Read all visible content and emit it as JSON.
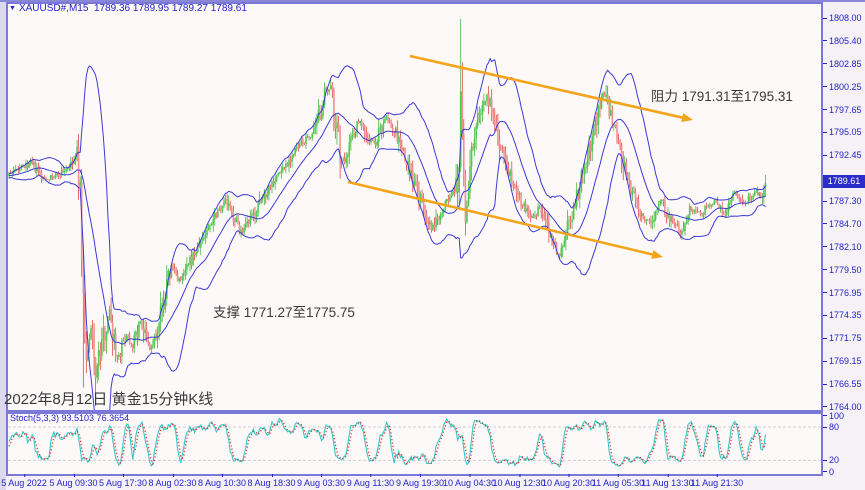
{
  "window": {
    "title": "XAUUSD#,M15  1789.36 1789.95 1789.27 1789.61",
    "dropdown_icon": "▼"
  },
  "colors": {
    "candle_up": "#2eae2e",
    "candle_up_fill": "#4ecb4e",
    "candle_down": "#e03030",
    "candle_down_fill": "#f29090",
    "bollinger": "#3b3bd6",
    "stoch_main": "#35c8c8",
    "stoch_signal": "#e03232",
    "arrow": "#f2a51b",
    "axis_text": "#2424c8",
    "badge_bg": "#2c2cc8",
    "panel_border": "#7a7ad6",
    "level_dash": "#cfcfcf"
  },
  "price_axis": {
    "ticks": [
      "1808.00",
      "1805.40",
      "1802.85",
      "1800.25",
      "1797.65",
      "1795.05",
      "1792.45",
      "1787.30",
      "1784.70",
      "1782.10",
      "1779.50",
      "1776.95",
      "1774.35",
      "1771.75",
      "1769.15",
      "1766.55",
      "1764.00"
    ],
    "current_price": "1789.61"
  },
  "time_axis": {
    "labels": [
      "5 Aug 2022",
      "5 Aug 09:30",
      "5 Aug 17:30",
      "8 Aug 02:30",
      "8 Aug 10:30",
      "8 Aug 18:30",
      "9 Aug 03:30",
      "9 Aug 11:30",
      "9 Aug 19:30",
      "10 Aug 04:30",
      "10 Aug 12:30",
      "10 Aug 20:30",
      "11 Aug 05:30",
      "11 Aug 13:30",
      "11 Aug 21:30"
    ]
  },
  "indicator": {
    "label": "Stoch(5,3,3) 93.5103 76.3654",
    "scale": [
      "100",
      "80",
      "20",
      "0"
    ],
    "levels": [
      80,
      20
    ]
  },
  "annotations": {
    "resistance": "阻力 1791.31至1795.31",
    "support": "支撑 1771.27至1775.75",
    "date_note": "2022年8月12日 黄金15分钟K线"
  },
  "chart_data": {
    "type": "candlestick",
    "symbol": "XAUUSD#",
    "timeframe": "M15",
    "title": "XAUUSD#,M15",
    "last_ohlc": {
      "open": 1789.36,
      "high": 1789.95,
      "low": 1789.27,
      "close": 1789.61
    },
    "ylim": [
      1764.0,
      1808.0
    ],
    "resistance_zone": [
      1791.31,
      1795.31
    ],
    "support_zone": [
      1771.27,
      1775.75
    ],
    "overlays": [
      {
        "name": "Bollinger Bands",
        "period": 20,
        "deviation": 2
      }
    ],
    "indicator_pane": {
      "name": "Stochastic",
      "params": [
        5,
        3,
        3
      ],
      "values": [
        93.5103,
        76.3654
      ],
      "levels": [
        80,
        20
      ]
    },
    "price_waypoints": [
      [
        0,
        1790.2
      ],
      [
        14,
        1791.6
      ],
      [
        22,
        1789.8
      ],
      [
        30,
        1790.1
      ],
      [
        40,
        1791.3
      ],
      [
        44,
        1792.4
      ],
      [
        46,
        1788.0
      ],
      [
        48,
        1776.0
      ],
      [
        50,
        1769.2
      ],
      [
        53,
        1772.6
      ],
      [
        56,
        1767.8
      ],
      [
        60,
        1771.2
      ],
      [
        65,
        1774.8
      ],
      [
        70,
        1769.6
      ],
      [
        76,
        1772.2
      ],
      [
        80,
        1771.0
      ],
      [
        85,
        1773.8
      ],
      [
        91,
        1770.4
      ],
      [
        96,
        1772.2
      ],
      [
        100,
        1776.2
      ],
      [
        105,
        1779.8
      ],
      [
        111,
        1778.2
      ],
      [
        120,
        1781.4
      ],
      [
        127,
        1783.6
      ],
      [
        133,
        1785.8
      ],
      [
        140,
        1787.4
      ],
      [
        143,
        1786.2
      ],
      [
        151,
        1783.6
      ],
      [
        159,
        1786.0
      ],
      [
        169,
        1789.2
      ],
      [
        178,
        1791.2
      ],
      [
        188,
        1793.6
      ],
      [
        198,
        1795.2
      ],
      [
        204,
        1799.4
      ],
      [
        209,
        1799.9
      ],
      [
        212,
        1795.0
      ],
      [
        215,
        1791.4
      ],
      [
        222,
        1794.8
      ],
      [
        227,
        1796.6
      ],
      [
        232,
        1794.2
      ],
      [
        237,
        1793.8
      ],
      [
        243,
        1796.8
      ],
      [
        250,
        1795.0
      ],
      [
        259,
        1790.6
      ],
      [
        266,
        1787.4
      ],
      [
        273,
        1783.9
      ],
      [
        279,
        1786.2
      ],
      [
        285,
        1787.8
      ],
      [
        290,
        1788.6
      ],
      [
        291,
        1792.0
      ],
      [
        292,
        1800.0
      ],
      [
        293,
        1796.0
      ],
      [
        295,
        1784.2
      ],
      [
        299,
        1793.2
      ],
      [
        304,
        1797.4
      ],
      [
        309,
        1799.2
      ],
      [
        317,
        1794.0
      ],
      [
        324,
        1790.4
      ],
      [
        332,
        1787.0
      ],
      [
        339,
        1785.2
      ],
      [
        343,
        1786.6
      ],
      [
        351,
        1782.9
      ],
      [
        356,
        1781.3
      ],
      [
        359,
        1783.2
      ],
      [
        366,
        1787.2
      ],
      [
        372,
        1791.2
      ],
      [
        379,
        1796.0
      ],
      [
        384,
        1799.6
      ],
      [
        388,
        1797.4
      ],
      [
        395,
        1792.8
      ],
      [
        401,
        1788.8
      ],
      [
        408,
        1785.8
      ],
      [
        414,
        1784.8
      ],
      [
        421,
        1787.4
      ],
      [
        427,
        1785.4
      ],
      [
        434,
        1783.8
      ],
      [
        440,
        1786.6
      ],
      [
        447,
        1785.8
      ],
      [
        456,
        1787.3
      ],
      [
        463,
        1786.0
      ],
      [
        469,
        1788.1
      ],
      [
        476,
        1786.9
      ],
      [
        482,
        1788.4
      ],
      [
        487,
        1787.7
      ],
      [
        489,
        1789.6
      ]
    ],
    "spikes": [
      {
        "bar": 292,
        "high": 1807.9
      },
      {
        "bar": 293,
        "high": 1803.0
      },
      {
        "bar": 48,
        "low": 1766.2
      },
      {
        "bar": 56,
        "low": 1765.6
      },
      {
        "bar": 295,
        "low": 1783.4
      }
    ]
  }
}
